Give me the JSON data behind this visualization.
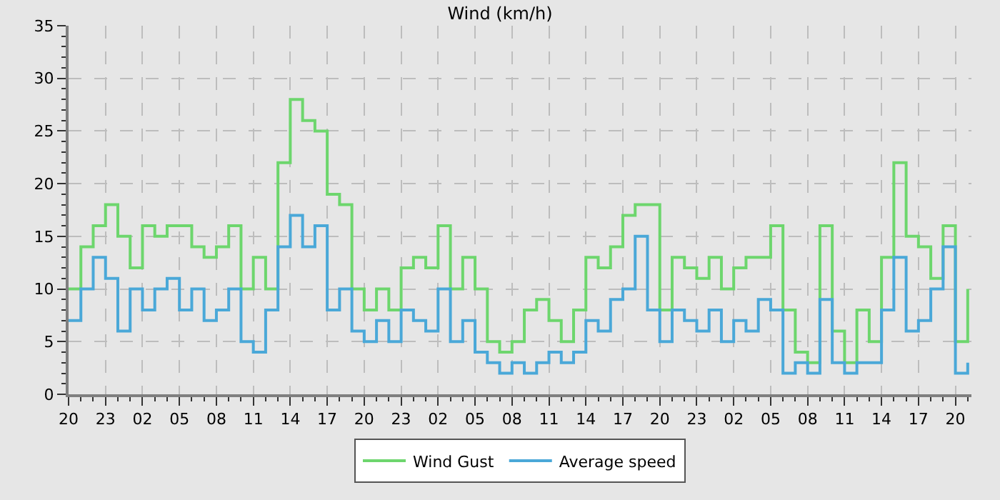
{
  "chart_data": {
    "type": "step",
    "title": "Wind (km/h)",
    "x": [
      "--01-01T20:00",
      "--01-01T21:00",
      "--01-01T22:00",
      "--01-01T23:00",
      "--01-02T00:00",
      "--01-02T01:00",
      "--01-02T02:00",
      "--01-02T03:00",
      "--01-02T04:00",
      "--01-02T05:00",
      "--01-02T06:00",
      "--01-02T07:00",
      "--01-02T08:00",
      "--01-02T09:00",
      "--01-02T10:00",
      "--01-02T11:00",
      "--01-02T12:00",
      "--01-02T13:00",
      "--01-02T14:00",
      "--01-02T15:00",
      "--01-02T16:00",
      "--01-02T17:00",
      "--01-02T18:00",
      "--01-02T19:00",
      "--01-02T20:00",
      "--01-02T21:00",
      "--01-02T22:00",
      "--01-02T23:00",
      "--01-03T00:00",
      "--01-03T01:00",
      "--01-03T02:00",
      "--01-03T03:00",
      "--01-03T04:00",
      "--01-03T05:00",
      "--01-03T06:00",
      "--01-03T07:00",
      "--01-03T08:00",
      "--01-03T09:00",
      "--01-03T10:00",
      "--01-03T11:00",
      "--01-03T12:00",
      "--01-03T13:00",
      "--01-03T14:00",
      "--01-03T15:00",
      "--01-03T16:00",
      "--01-03T17:00",
      "--01-03T18:00",
      "--01-03T19:00",
      "--01-03T20:00",
      "--01-03T21:00",
      "--01-03T22:00",
      "--01-03T23:00",
      "--01-04T00:00",
      "--01-04T01:00",
      "--01-04T02:00",
      "--01-04T03:00",
      "--01-04T04:00",
      "--01-04T05:00",
      "--01-04T06:00",
      "--01-04T07:00",
      "--01-04T08:00",
      "--01-04T09:00",
      "--01-04T10:00",
      "--01-04T11:00",
      "--01-04T12:00",
      "--01-04T13:00",
      "--01-04T14:00",
      "--01-04T15:00",
      "--01-04T16:00",
      "--01-04T17:00",
      "--01-04T18:00",
      "--01-04T19:00",
      "--01-04T20:00",
      "--01-04T21:00"
    ],
    "series": [
      {
        "name": "Wind Gust",
        "color": "#6dd66d",
        "values": [
          10,
          14,
          16,
          18,
          15,
          12,
          16,
          15,
          16,
          16,
          14,
          13,
          14,
          16,
          10,
          13,
          10,
          22,
          28,
          26,
          25,
          19,
          18,
          10,
          8,
          10,
          8,
          12,
          13,
          12,
          16,
          10,
          13,
          10,
          5,
          4,
          5,
          8,
          9,
          7,
          5,
          8,
          13,
          12,
          14,
          17,
          18,
          18,
          8,
          13,
          12,
          11,
          13,
          10,
          12,
          13,
          13,
          16,
          8,
          4,
          3,
          16,
          6,
          3,
          8,
          5,
          13,
          22,
          15,
          14,
          11,
          16,
          5,
          10
        ]
      },
      {
        "name": "Average speed",
        "color": "#4aa8d8",
        "values": [
          7,
          10,
          13,
          11,
          6,
          10,
          8,
          10,
          11,
          8,
          10,
          7,
          8,
          10,
          5,
          4,
          8,
          14,
          17,
          14,
          16,
          8,
          10,
          6,
          5,
          7,
          5,
          8,
          7,
          6,
          10,
          5,
          7,
          4,
          3,
          2,
          3,
          2,
          3,
          4,
          3,
          4,
          7,
          6,
          9,
          10,
          15,
          8,
          5,
          8,
          7,
          6,
          8,
          5,
          7,
          6,
          9,
          8,
          2,
          3,
          2,
          9,
          3,
          2,
          3,
          3,
          8,
          13,
          6,
          7,
          10,
          14,
          2,
          3
        ]
      }
    ],
    "xlim": [
      "--01-01T20:00",
      "--01-04T21:18"
    ],
    "xticks": [
      {
        "value": "--01-01T20:00",
        "label": "20"
      },
      {
        "value": "--01-01T23:00",
        "label": "23"
      },
      {
        "value": "--01-02T02:00",
        "label": "02"
      },
      {
        "value": "--01-02T05:00",
        "label": "05"
      },
      {
        "value": "--01-02T08:00",
        "label": "08"
      },
      {
        "value": "--01-02T11:00",
        "label": "11"
      },
      {
        "value": "--01-02T14:00",
        "label": "14"
      },
      {
        "value": "--01-02T17:00",
        "label": "17"
      },
      {
        "value": "--01-02T20:00",
        "label": "20"
      },
      {
        "value": "--01-02T23:00",
        "label": "23"
      },
      {
        "value": "--01-03T02:00",
        "label": "02"
      },
      {
        "value": "--01-03T05:00",
        "label": "05"
      },
      {
        "value": "--01-03T08:00",
        "label": "08"
      },
      {
        "value": "--01-03T11:00",
        "label": "11"
      },
      {
        "value": "--01-03T14:00",
        "label": "14"
      },
      {
        "value": "--01-03T17:00",
        "label": "17"
      },
      {
        "value": "--01-03T20:00",
        "label": "20"
      },
      {
        "value": "--01-03T23:00",
        "label": "23"
      },
      {
        "value": "--01-04T02:00",
        "label": "02"
      },
      {
        "value": "--01-04T05:00",
        "label": "05"
      },
      {
        "value": "--01-04T08:00",
        "label": "08"
      },
      {
        "value": "--01-04T11:00",
        "label": "11"
      },
      {
        "value": "--01-04T14:00",
        "label": "14"
      },
      {
        "value": "--01-04T17:00",
        "label": "17"
      },
      {
        "value": "--01-04T20:00",
        "label": "20"
      }
    ],
    "ylim": [
      0,
      35
    ],
    "yticks": [
      0,
      5,
      10,
      15,
      20,
      25,
      30,
      35
    ],
    "grid": true,
    "legend": "bottom",
    "line_style": "solid",
    "marker": "none"
  }
}
